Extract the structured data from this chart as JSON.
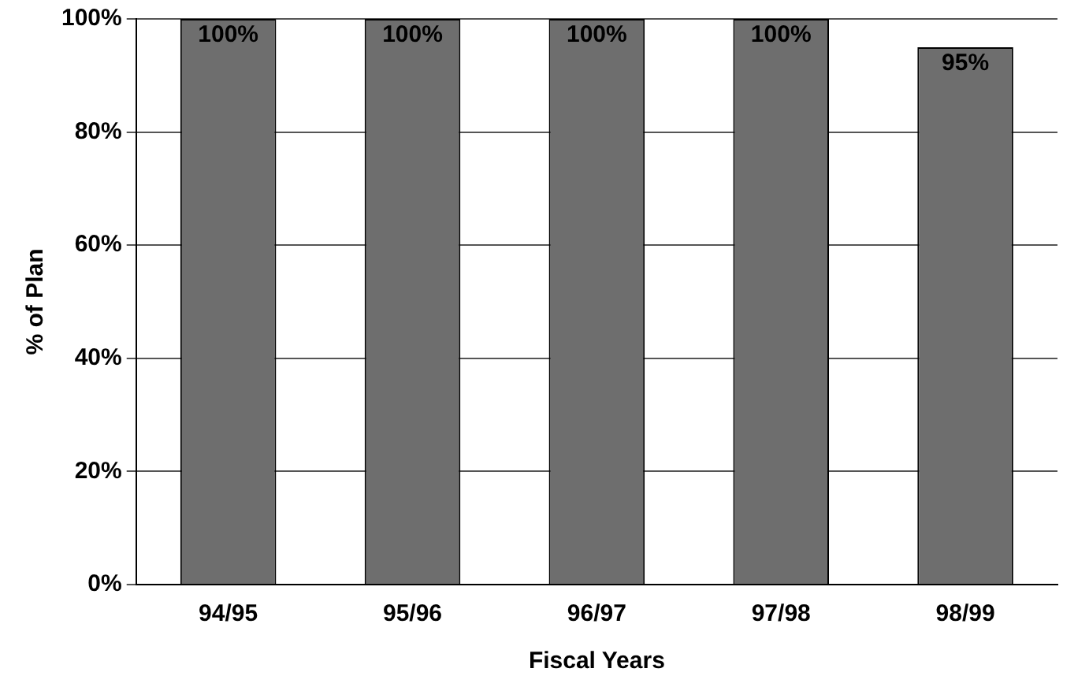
{
  "chart_data": {
    "type": "bar",
    "xlabel": "Fiscal Years",
    "ylabel": "% of Plan",
    "categories": [
      "94/95",
      "95/96",
      "96/97",
      "97/98",
      "98/99"
    ],
    "values": [
      100,
      100,
      100,
      100,
      95
    ],
    "color": "#6e6e6e",
    "value_labels": [
      "100%",
      "100%",
      "100%",
      "100%",
      "95%"
    ],
    "ylim": [
      0,
      100
    ],
    "yticks": [
      {
        "value": 0,
        "label": "0%"
      },
      {
        "value": 20,
        "label": "20%"
      },
      {
        "value": 40,
        "label": "40%"
      },
      {
        "value": 60,
        "label": "60%"
      },
      {
        "value": 80,
        "label": "80%"
      },
      {
        "value": 100,
        "label": "100%"
      }
    ],
    "grid": "y"
  }
}
